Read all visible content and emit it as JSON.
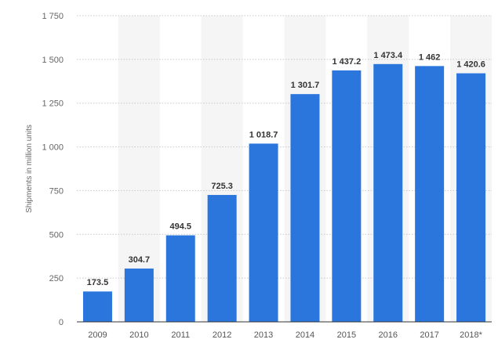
{
  "chart_data": {
    "type": "bar",
    "categories": [
      "2009",
      "2010",
      "2011",
      "2012",
      "2013",
      "2014",
      "2015",
      "2016",
      "2017",
      "2018*"
    ],
    "values": [
      173.5,
      304.7,
      494.5,
      725.3,
      1018.7,
      1301.7,
      1437.2,
      1473.4,
      1462,
      1420.6
    ],
    "value_labels": [
      "173.5",
      "304.7",
      "494.5",
      "725.3",
      "1 018.7",
      "1 301.7",
      "1 437.2",
      "1 473.4",
      "1 462",
      "1 420.6"
    ],
    "ylabel": "Shipments in million units",
    "ylim": [
      0,
      1750
    ],
    "yticks": [
      0,
      250,
      500,
      750,
      1000,
      1250,
      1500,
      1750
    ],
    "ytick_labels": [
      "0",
      "250",
      "500",
      "750",
      "1 000",
      "1 250",
      "1 500",
      "1 750"
    ],
    "grid": true,
    "bar_color": "#2a76dd",
    "band_color": "#f5f5f5"
  }
}
